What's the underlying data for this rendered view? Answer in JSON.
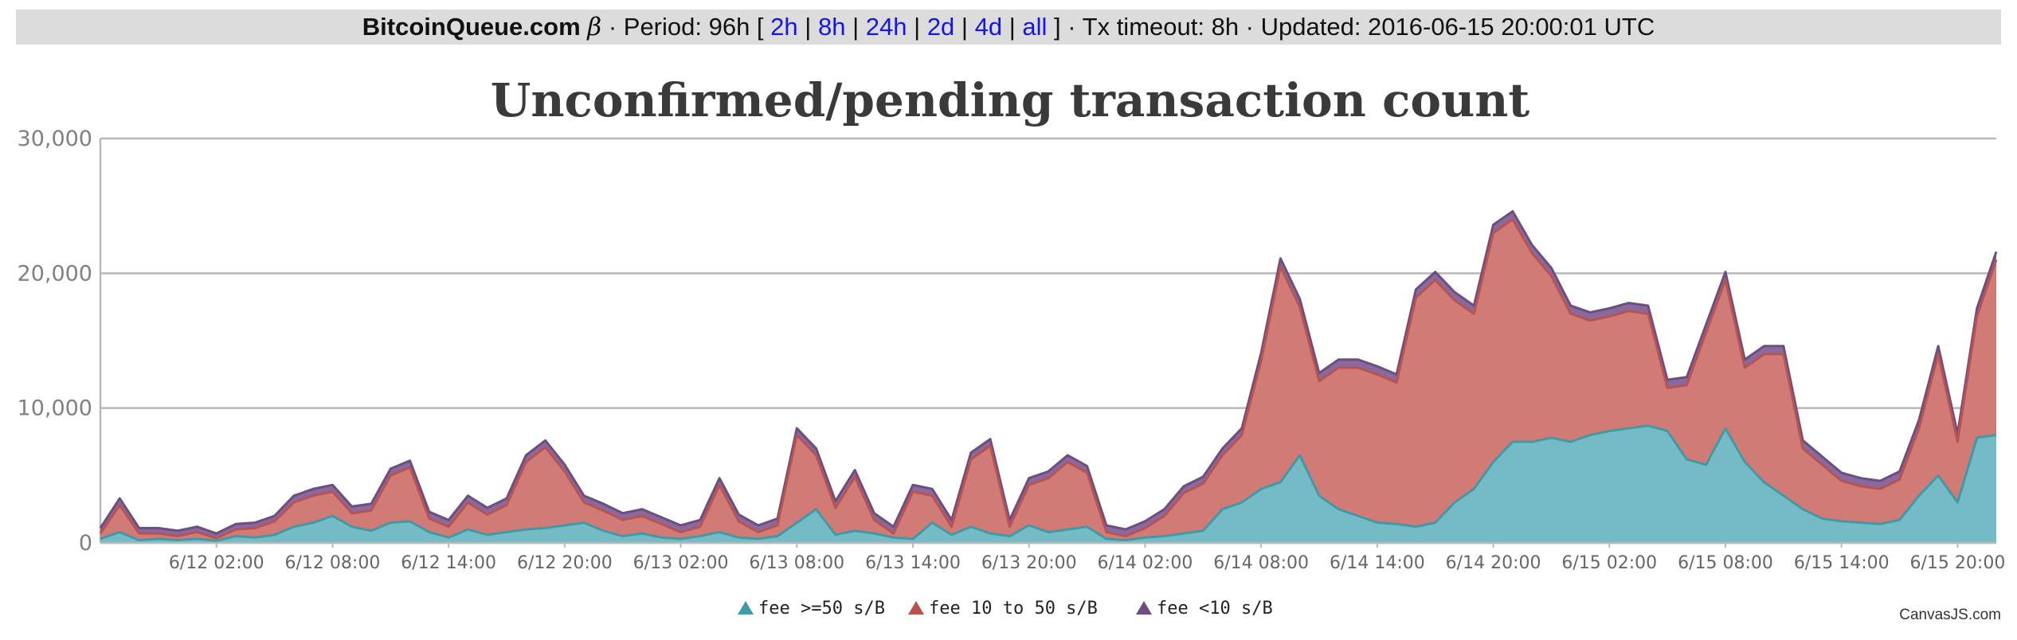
{
  "header": {
    "site": "BitcoinQueue.com",
    "beta": "β",
    "period_prefix": "· Period: 96h [",
    "links": [
      "2h",
      "8h",
      "24h",
      "2d",
      "4d",
      "all"
    ],
    "sep": "|",
    "suffix": "] · Tx timeout: 8h · Updated: 2016-06-15 20:00:01 UTC"
  },
  "credit": "CanvasJS.com",
  "colors": {
    "series": [
      "#74bbc6",
      "#d17b77",
      "#8a6a9c"
    ],
    "lines": [
      "#3f9aa8",
      "#b8534f",
      "#6e4d82"
    ],
    "grid": "#b8b8b8"
  },
  "chart_data": {
    "type": "area",
    "stacked": true,
    "title": "Unconfirmed/pending transaction count",
    "ylim": [
      0,
      30000
    ],
    "yticks": [
      0,
      10000,
      20000,
      30000
    ],
    "ytick_labels": [
      "0",
      "10,000",
      "20,000",
      "30,000"
    ],
    "xlim": [
      "2016-06-11 20:00",
      "2016-06-15 22:00"
    ],
    "xtick_labels": [
      "6/12 02:00",
      "6/12 08:00",
      "6/12 14:00",
      "6/12 20:00",
      "6/13 02:00",
      "6/13 08:00",
      "6/13 14:00",
      "6/13 20:00",
      "6/14 02:00",
      "6/14 08:00",
      "6/14 14:00",
      "6/14 20:00",
      "6/15 02:00",
      "6/15 08:00",
      "6/15 14:00",
      "6/15 20:00"
    ],
    "x": [
      "2016-06-11 20:00",
      "2016-06-11 21:00",
      "2016-06-11 22:00",
      "2016-06-11 23:00",
      "2016-06-12 00:00",
      "2016-06-12 01:00",
      "2016-06-12 02:00",
      "2016-06-12 03:00",
      "2016-06-12 04:00",
      "2016-06-12 05:00",
      "2016-06-12 06:00",
      "2016-06-12 07:00",
      "2016-06-12 08:00",
      "2016-06-12 09:00",
      "2016-06-12 10:00",
      "2016-06-12 11:00",
      "2016-06-12 12:00",
      "2016-06-12 13:00",
      "2016-06-12 14:00",
      "2016-06-12 15:00",
      "2016-06-12 16:00",
      "2016-06-12 17:00",
      "2016-06-12 18:00",
      "2016-06-12 19:00",
      "2016-06-12 20:00",
      "2016-06-12 21:00",
      "2016-06-12 22:00",
      "2016-06-12 23:00",
      "2016-06-13 00:00",
      "2016-06-13 01:00",
      "2016-06-13 02:00",
      "2016-06-13 03:00",
      "2016-06-13 04:00",
      "2016-06-13 05:00",
      "2016-06-13 06:00",
      "2016-06-13 07:00",
      "2016-06-13 08:00",
      "2016-06-13 09:00",
      "2016-06-13 10:00",
      "2016-06-13 11:00",
      "2016-06-13 12:00",
      "2016-06-13 13:00",
      "2016-06-13 14:00",
      "2016-06-13 15:00",
      "2016-06-13 16:00",
      "2016-06-13 17:00",
      "2016-06-13 18:00",
      "2016-06-13 19:00",
      "2016-06-13 20:00",
      "2016-06-13 21:00",
      "2016-06-13 22:00",
      "2016-06-13 23:00",
      "2016-06-14 00:00",
      "2016-06-14 01:00",
      "2016-06-14 02:00",
      "2016-06-14 03:00",
      "2016-06-14 04:00",
      "2016-06-14 05:00",
      "2016-06-14 06:00",
      "2016-06-14 07:00",
      "2016-06-14 08:00",
      "2016-06-14 09:00",
      "2016-06-14 10:00",
      "2016-06-14 11:00",
      "2016-06-14 12:00",
      "2016-06-14 13:00",
      "2016-06-14 14:00",
      "2016-06-14 15:00",
      "2016-06-14 16:00",
      "2016-06-14 17:00",
      "2016-06-14 18:00",
      "2016-06-14 19:00",
      "2016-06-14 20:00",
      "2016-06-14 21:00",
      "2016-06-14 22:00",
      "2016-06-14 23:00",
      "2016-06-15 00:00",
      "2016-06-15 01:00",
      "2016-06-15 02:00",
      "2016-06-15 03:00",
      "2016-06-15 04:00",
      "2016-06-15 05:00",
      "2016-06-15 06:00",
      "2016-06-15 07:00",
      "2016-06-15 08:00",
      "2016-06-15 09:00",
      "2016-06-15 10:00",
      "2016-06-15 11:00",
      "2016-06-15 12:00",
      "2016-06-15 13:00",
      "2016-06-15 14:00",
      "2016-06-15 15:00",
      "2016-06-15 16:00",
      "2016-06-15 17:00",
      "2016-06-15 18:00",
      "2016-06-15 19:00",
      "2016-06-15 20:00",
      "2016-06-15 21:00",
      "2016-06-15 22:00"
    ],
    "series": [
      {
        "name": "fee >=50 s/B",
        "values": [
          300,
          800,
          200,
          300,
          200,
          300,
          150,
          500,
          400,
          600,
          1200,
          1500,
          2000,
          1200,
          900,
          1500,
          1600,
          800,
          400,
          1000,
          600,
          800,
          1000,
          1100,
          1300,
          1500,
          900,
          500,
          700,
          400,
          300,
          500,
          800,
          400,
          300,
          500,
          1500,
          2500,
          600,
          900,
          700,
          400,
          300,
          1500,
          600,
          1200,
          700,
          500,
          1300,
          800,
          1000,
          1200,
          300,
          200,
          400,
          500,
          700,
          900,
          2500,
          3000,
          4000,
          4500,
          6500,
          3500,
          2500,
          2000,
          1500,
          1400,
          1200,
          1500,
          3000,
          4000,
          6000,
          7500,
          7500,
          7800,
          7500,
          8000,
          8300,
          8500,
          8700,
          8300,
          6200,
          5800,
          8500,
          6000,
          4500,
          3500,
          2500,
          1800,
          1600,
          1500,
          1400,
          1700,
          3500,
          5000,
          3000,
          7800,
          8000
        ]
      },
      {
        "name": "fee 10 to 50 s/B",
        "values": [
          400,
          2000,
          500,
          400,
          300,
          500,
          200,
          500,
          700,
          1000,
          1800,
          2000,
          1800,
          1000,
          1500,
          3500,
          4000,
          1000,
          800,
          2000,
          1500,
          2000,
          5000,
          6000,
          4000,
          1500,
          1500,
          1200,
          1300,
          1000,
          500,
          700,
          3500,
          1200,
          500,
          800,
          6500,
          4000,
          2000,
          4000,
          1000,
          300,
          3500,
          2000,
          600,
          5000,
          6500,
          700,
          3000,
          4000,
          5000,
          4000,
          500,
          300,
          700,
          1500,
          3000,
          3500,
          4000,
          5000,
          9500,
          16000,
          11000,
          8500,
          10500,
          11000,
          11000,
          10500,
          17000,
          18000,
          15000,
          13000,
          17000,
          16500,
          14000,
          12000,
          9500,
          8500,
          8500,
          8700,
          8300,
          3200,
          5500,
          9800,
          11000,
          7000,
          9500,
          10500,
          4500,
          4000,
          3000,
          2700,
          2600,
          3000,
          5000,
          9000,
          4500,
          9000,
          13000
        ]
      },
      {
        "name": "fee <10 s/B",
        "values": [
          400,
          500,
          400,
          400,
          400,
          400,
          350,
          400,
          400,
          400,
          500,
          500,
          500,
          500,
          500,
          500,
          500,
          500,
          500,
          500,
          500,
          500,
          500,
          500,
          500,
          500,
          500,
          500,
          500,
          500,
          500,
          500,
          500,
          500,
          500,
          500,
          500,
          500,
          500,
          500,
          500,
          500,
          500,
          500,
          500,
          500,
          500,
          500,
          500,
          500,
          500,
          500,
          500,
          500,
          500,
          500,
          500,
          500,
          500,
          500,
          600,
          600,
          600,
          600,
          600,
          600,
          600,
          600,
          600,
          600,
          600,
          600,
          600,
          600,
          600,
          600,
          600,
          600,
          600,
          600,
          600,
          600,
          600,
          600,
          600,
          600,
          600,
          600,
          600,
          600,
          600,
          600,
          600,
          600,
          600,
          600,
          600,
          600,
          600
        ]
      }
    ],
    "legend_position": "bottom-center"
  }
}
